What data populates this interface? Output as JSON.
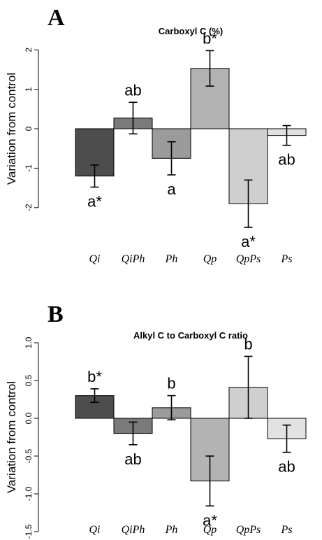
{
  "chart_data": [
    {
      "panel": "A",
      "type": "bar",
      "title": "Carboxyl C (%)",
      "ylabel": "Variation from control",
      "ylim": [
        -2.5,
        2.2
      ],
      "yticks": [
        -2,
        -1,
        0,
        1,
        2
      ],
      "ytick_labels": [
        "-2",
        "-1",
        "0",
        "1",
        "2"
      ],
      "categories": [
        "Qi",
        "QiPh",
        "Ph",
        "Qp",
        "QpPs",
        "Ps"
      ],
      "values": [
        -1.2,
        0.27,
        -0.75,
        1.53,
        -1.9,
        -0.17
      ],
      "errors": [
        0.28,
        0.4,
        0.42,
        0.45,
        0.6,
        0.25
      ],
      "significance": [
        "a*",
        "ab",
        "a",
        "b*",
        "a*",
        "ab"
      ],
      "colors": [
        "#4d4d4d",
        "#7a7a7a",
        "#9b9b9b",
        "#b3b3b3",
        "#cfcfcf",
        "#e2e2e2"
      ]
    },
    {
      "panel": "B",
      "type": "bar",
      "title": "Alkyl C to Carboxyl C ratio",
      "ylabel": "Variation from control",
      "ylim": [
        -1.5,
        1.0
      ],
      "yticks": [
        -1.5,
        -1.0,
        -0.5,
        0.0,
        0.5,
        1.0
      ],
      "ytick_labels": [
        "-1.5",
        "-1.0",
        "-0.5",
        "0.0",
        "0.5",
        "1.0"
      ],
      "categories": [
        "Qi",
        "QiPh",
        "Ph",
        "Qp",
        "QpPs",
        "Ps"
      ],
      "values": [
        0.3,
        -0.2,
        0.14,
        -0.83,
        0.41,
        -0.27
      ],
      "errors": [
        0.09,
        0.15,
        0.16,
        0.33,
        0.41,
        0.18
      ],
      "significance": [
        "b*",
        "ab",
        "b",
        "a*",
        "b",
        "ab"
      ],
      "colors": [
        "#4d4d4d",
        "#7a7a7a",
        "#9b9b9b",
        "#b3b3b3",
        "#cfcfcf",
        "#e2e2e2"
      ]
    }
  ]
}
